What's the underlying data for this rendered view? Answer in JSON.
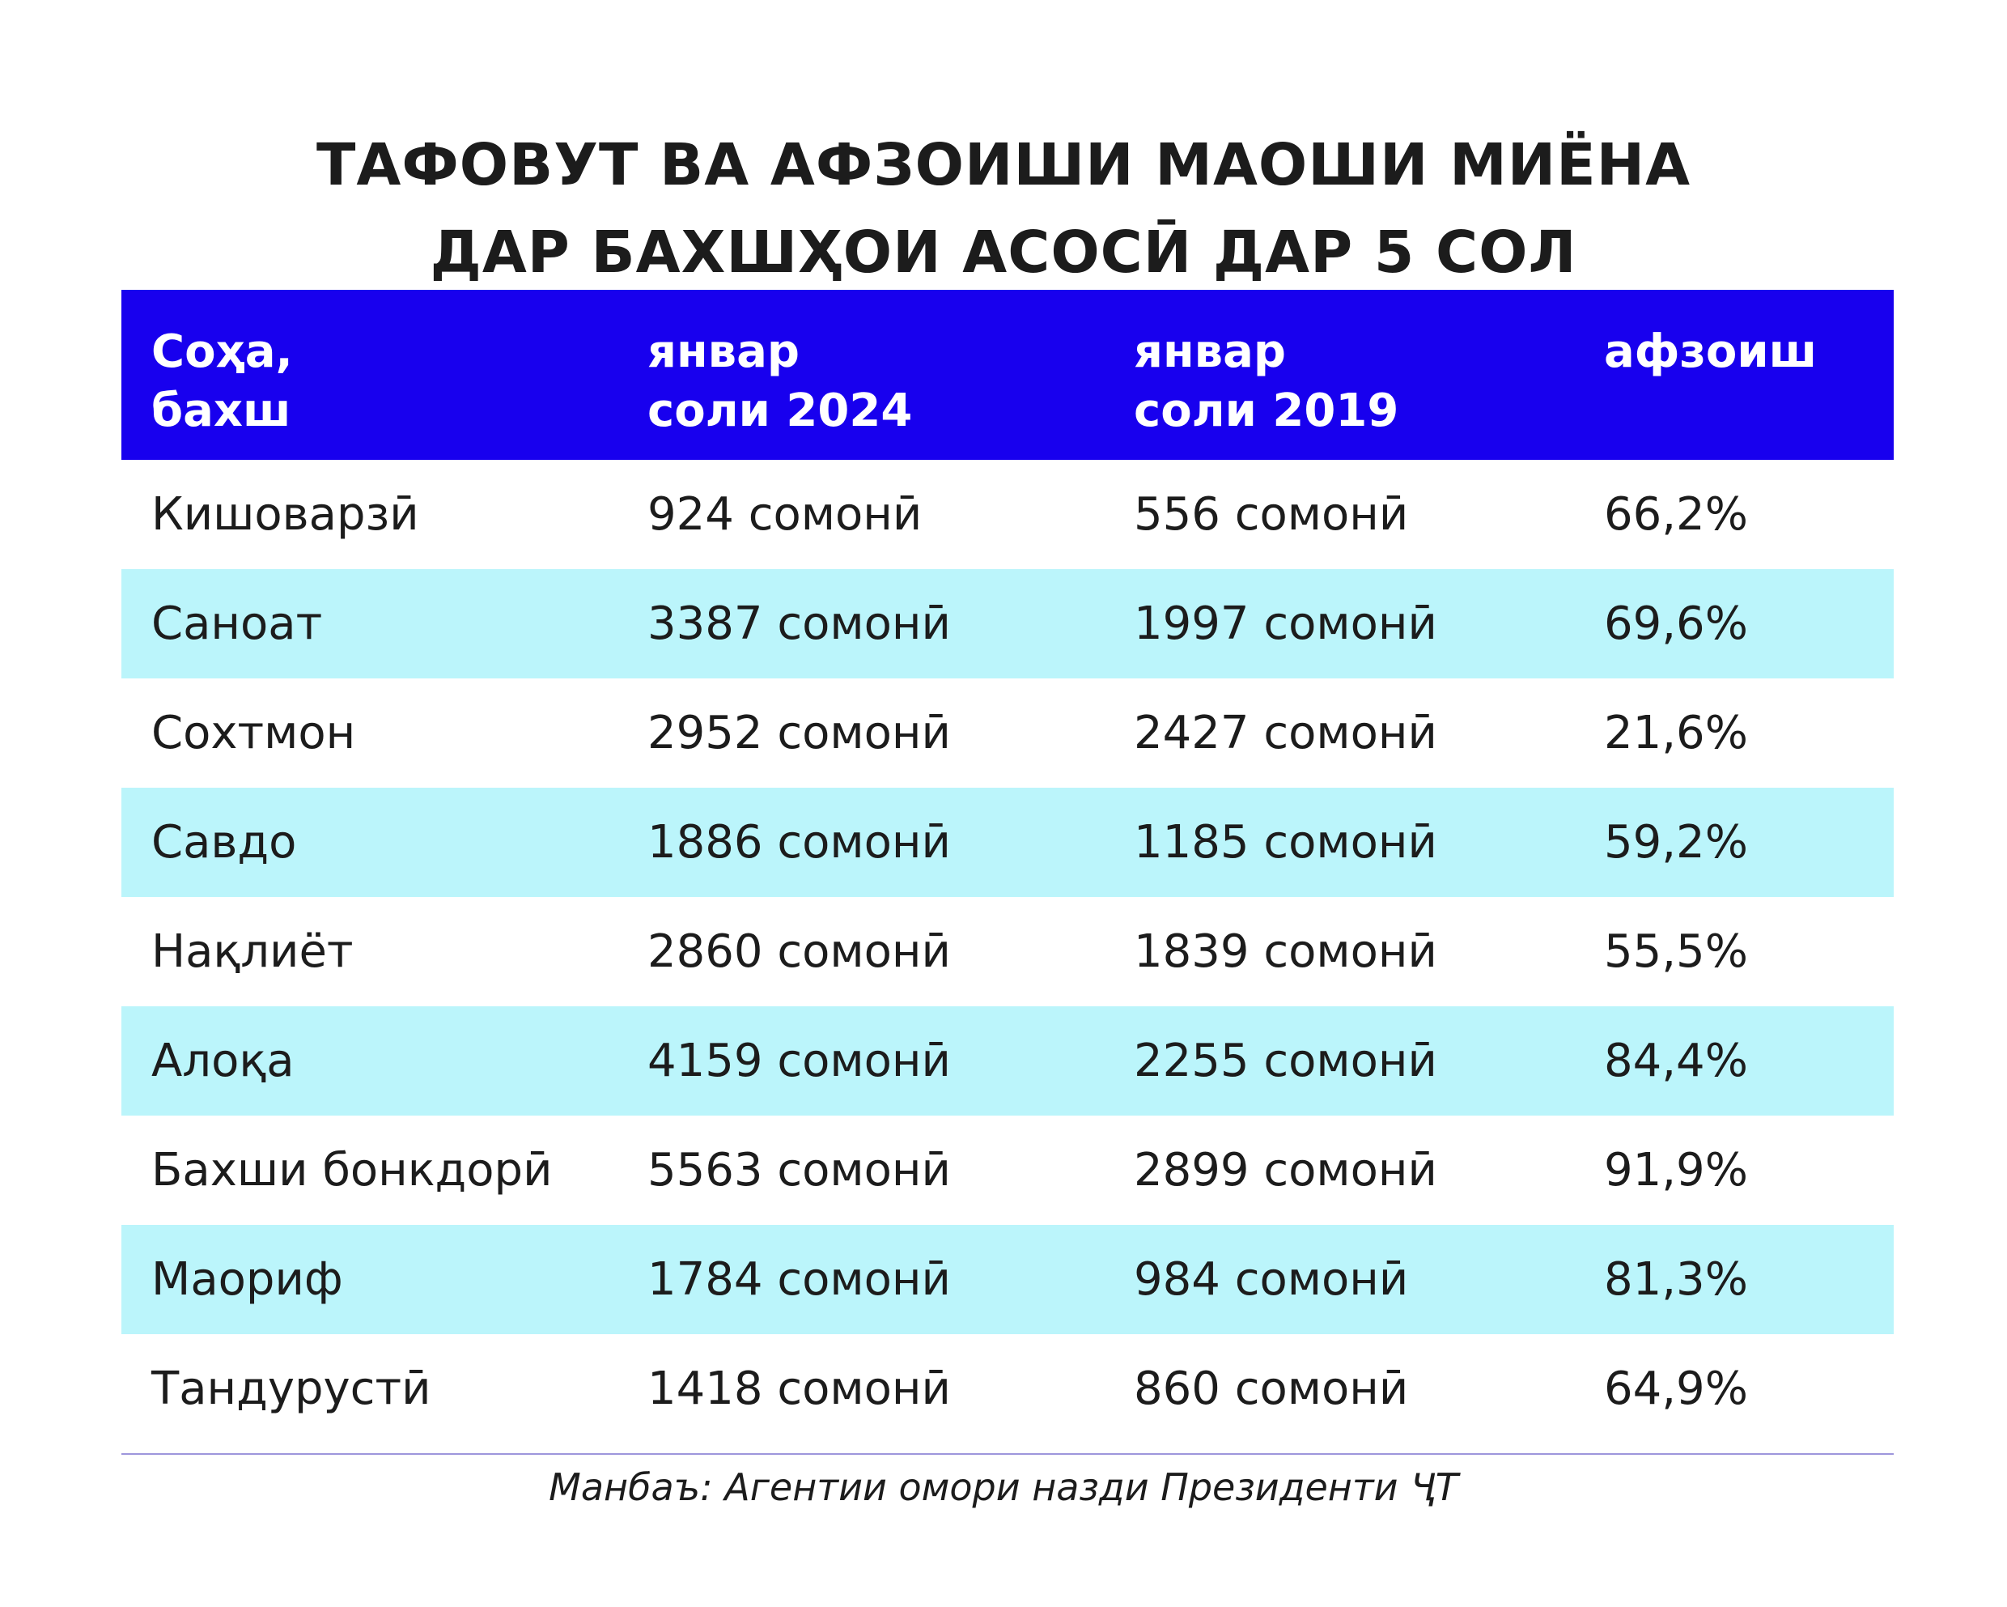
{
  "title": {
    "line1": "ТАФОВУТ ВА АФЗОИШИ МАОШИ МИЁНА",
    "line2": "ДАР БАХШҲОИ АСОСӢ ДАР 5 СОЛ"
  },
  "colors": {
    "header_background": "#1800ee",
    "header_text": "#ffffff",
    "row_shade": "#bbf5fb",
    "text": "#1c1c1c",
    "rule": "#9d96dc"
  },
  "chart_data": {
    "type": "table",
    "title": "ТАФОВУТ ВА АФЗОИШИ МАОШИ МИЁНА ДАР БАХШҲОИ АСОСӢ ДАР 5 СОЛ",
    "columns": [
      {
        "line1": "Соҳа,",
        "line2": "бахш"
      },
      {
        "line1": "январ",
        "line2": "соли 2024"
      },
      {
        "line1": "январ",
        "line2": "соли 2019"
      },
      {
        "line1": "афзоиш",
        "line2": ""
      }
    ],
    "rows": [
      [
        "Кишоварзӣ",
        "924 сомонӣ",
        "556 сомонӣ",
        "66,2%"
      ],
      [
        "Саноат",
        "3387 сомонӣ",
        "1997 сомонӣ",
        "69,6%"
      ],
      [
        "Сохтмон",
        "2952 сомонӣ",
        "2427 сомонӣ",
        "21,6%"
      ],
      [
        "Савдо",
        "1886 сомонӣ",
        "1185 сомонӣ",
        "59,2%"
      ],
      [
        "Нақлиёт",
        "2860 сомонӣ",
        "1839 сомонӣ",
        "55,5%"
      ],
      [
        "Алоқа",
        "4159 сомонӣ",
        "2255 сомонӣ",
        "84,4%"
      ],
      [
        "Бахши бонкдорӣ",
        "5563 сомонӣ",
        "2899 сомонӣ",
        "91,9%"
      ],
      [
        "Маориф",
        "1784 сомонӣ",
        "984 сомонӣ",
        "81,3%"
      ],
      [
        "Тандурустӣ",
        "1418 сомонӣ",
        "860 сомонӣ",
        "64,9%"
      ]
    ]
  },
  "source": "Манбаъ: Агентии омори назди Президенти ҶТ"
}
